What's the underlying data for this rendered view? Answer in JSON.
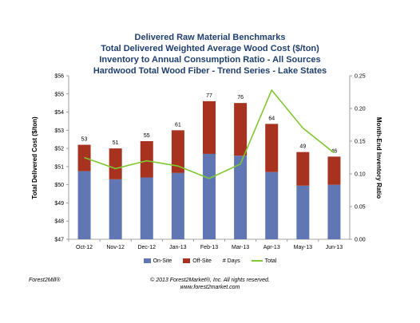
{
  "chart_data": {
    "type": "bar",
    "title_lines": [
      "Delivered Raw Material Benchmarks",
      "Total Delivered Weighted Average Wood Cost ($/ton)",
      "Inventory to Annual Consumption Ratio - All Sources",
      "Hardwood Total Wood Fiber - Trend Series - Lake States"
    ],
    "categories": [
      "Oct-12",
      "Nov-12",
      "Dec-12",
      "Jan-13",
      "Feb-13",
      "Mar-13",
      "Apr-13",
      "May-13",
      "Jun-13"
    ],
    "series": [
      {
        "name": "On-Site",
        "color": "#6177b4",
        "values": [
          50.75,
          50.3,
          50.4,
          50.65,
          51.7,
          51.6,
          50.7,
          49.95,
          50.0
        ]
      },
      {
        "name": "Off-Site",
        "color": "#a7321f",
        "values": [
          1.45,
          1.7,
          2.0,
          2.35,
          2.9,
          2.9,
          2.65,
          1.85,
          1.55
        ]
      }
    ],
    "days": {
      "name": "# Days",
      "values": [
        53,
        51,
        55,
        61,
        77,
        76,
        64,
        49,
        46
      ]
    },
    "inventory_ratio": {
      "name": "Total",
      "color": "#7fc832",
      "values": [
        0.125,
        0.108,
        0.12,
        0.112,
        0.093,
        0.115,
        0.228,
        0.17,
        0.132
      ]
    },
    "ylabel": "Total Delivered Cost ($/ton)",
    "y2label": "Month-End Inventory Ratio",
    "ylim": [
      47,
      56
    ],
    "y2lim": [
      0,
      0.25
    ],
    "yticks": [
      "$47",
      "$48",
      "$49",
      "$50",
      "$51",
      "$52",
      "$53",
      "$54",
      "$55",
      "$56"
    ],
    "y2ticks": [
      "0.00",
      "0.05",
      "0.10",
      "0.15",
      "0.20",
      "0.25"
    ],
    "legend_position": "bottom",
    "grid": false
  },
  "legend": {
    "on_site": "On-Site",
    "off_site": "Off-Site",
    "days": "# Days",
    "total": "Total"
  },
  "footer": {
    "brand": "Forest2Mill®",
    "copyright": "© 2013 Forest2Market®, Inc. All rights reserved.",
    "website": "www.forest2market.com"
  }
}
